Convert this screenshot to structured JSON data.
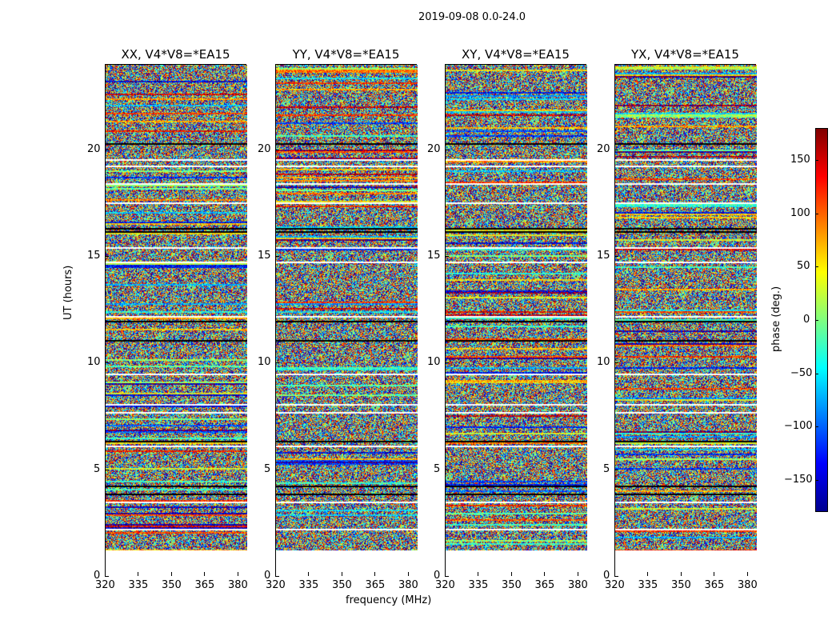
{
  "chart_data": {
    "type": "heatmap",
    "title": "2019-09-08 0.0-24.0",
    "panels": [
      {
        "title": "XX, V4*V8=*EA15"
      },
      {
        "title": "YY, V4*V8=*EA15"
      },
      {
        "title": "XY, V4*V8=*EA15"
      },
      {
        "title": "YX, V4*V8=*EA15"
      }
    ],
    "xlabel": "frequency (MHz)",
    "ylabel": "UT (hours)",
    "xlim": [
      320,
      384
    ],
    "ylim": [
      0,
      24
    ],
    "xticks": [
      "320",
      "335",
      "350",
      "365",
      "380"
    ],
    "yticks": [
      "0",
      "5",
      "10",
      "15",
      "20"
    ],
    "data_start_hours": 1.25,
    "colorbar": {
      "label": "phase (deg.)",
      "range": [
        -180,
        180
      ],
      "ticks": [
        "−150",
        "−100",
        "−50",
        "0",
        "50",
        "100",
        "150"
      ],
      "colormap": "jet"
    }
  }
}
